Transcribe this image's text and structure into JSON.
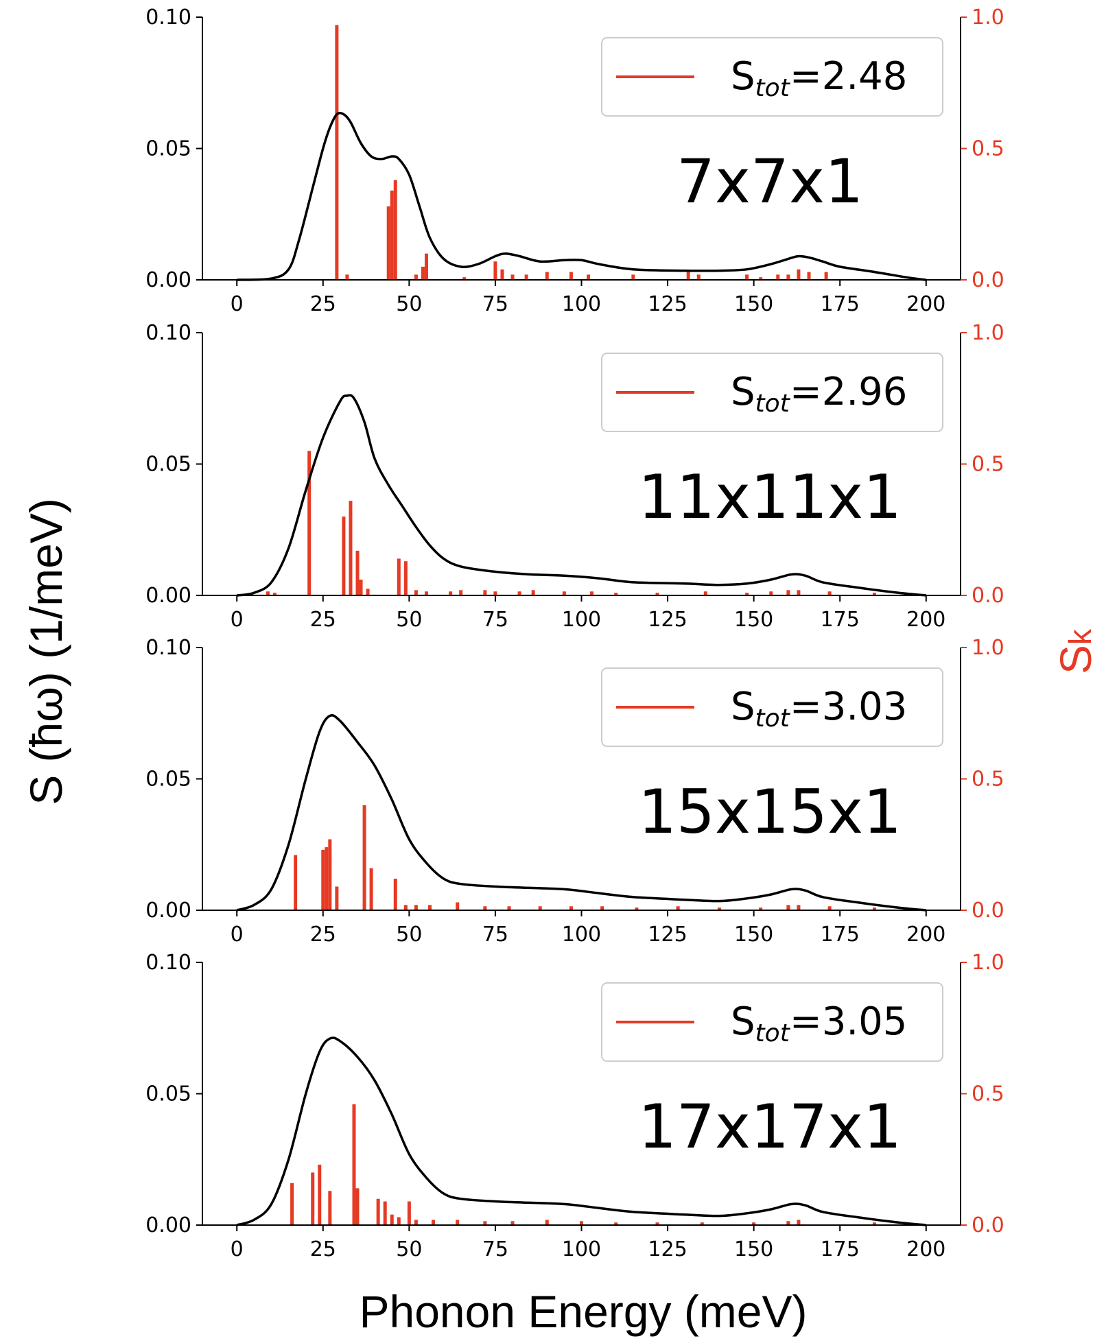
{
  "colors": {
    "curve": "#000000",
    "sticks": "#e53a24",
    "right_axis": "#e53a24",
    "left_axis": "#000000",
    "legend_border": "#cccccc"
  },
  "chart_data": {
    "type": "line",
    "shared_xlabel": "Phonon Energy (meV)",
    "shared_ylabel_left": "S (ħω)  (1/meV)",
    "shared_ylabel_right": "S",
    "shared_ylabel_right_sub": "k",
    "x_range": [
      0,
      200
    ],
    "x_ticks": [
      0,
      25,
      50,
      75,
      100,
      125,
      150,
      175,
      200
    ],
    "y_left_range": [
      0,
      0.1
    ],
    "y_left_ticks": [
      "0.00",
      "0.05",
      "0.10"
    ],
    "y_right_range": [
      0,
      1.0
    ],
    "y_right_ticks": [
      "0.0",
      "0.5",
      "1.0"
    ],
    "panels": [
      {
        "label": "7x7x1",
        "legend": {
          "prefix": "S",
          "sub": "tot",
          "value": "=2.48"
        },
        "curve": [
          [
            0,
            0
          ],
          [
            10,
            0.0005
          ],
          [
            15,
            0.004
          ],
          [
            18,
            0.015
          ],
          [
            22,
            0.035
          ],
          [
            25,
            0.05
          ],
          [
            27,
            0.058
          ],
          [
            29,
            0.063
          ],
          [
            31,
            0.063
          ],
          [
            33,
            0.06
          ],
          [
            36,
            0.052
          ],
          [
            39,
            0.047
          ],
          [
            42,
            0.046
          ],
          [
            45,
            0.047
          ],
          [
            47,
            0.046
          ],
          [
            50,
            0.04
          ],
          [
            53,
            0.028
          ],
          [
            56,
            0.016
          ],
          [
            60,
            0.008
          ],
          [
            65,
            0.005
          ],
          [
            70,
            0.006
          ],
          [
            75,
            0.009
          ],
          [
            78,
            0.01
          ],
          [
            82,
            0.009
          ],
          [
            88,
            0.007
          ],
          [
            95,
            0.0075
          ],
          [
            100,
            0.0075
          ],
          [
            105,
            0.006
          ],
          [
            115,
            0.004
          ],
          [
            130,
            0.0035
          ],
          [
            140,
            0.0035
          ],
          [
            148,
            0.004
          ],
          [
            155,
            0.006
          ],
          [
            160,
            0.008
          ],
          [
            163,
            0.009
          ],
          [
            166,
            0.0085
          ],
          [
            170,
            0.007
          ],
          [
            175,
            0.005
          ],
          [
            185,
            0.003
          ],
          [
            195,
            0.0008
          ],
          [
            200,
            0
          ]
        ],
        "sticks": [
          [
            29,
            0.97
          ],
          [
            32,
            0.02
          ],
          [
            44,
            0.28
          ],
          [
            45,
            0.34
          ],
          [
            46,
            0.38
          ],
          [
            52,
            0.02
          ],
          [
            54,
            0.05
          ],
          [
            55,
            0.1
          ],
          [
            66,
            0.01
          ],
          [
            75,
            0.07
          ],
          [
            77,
            0.04
          ],
          [
            80,
            0.02
          ],
          [
            84,
            0.02
          ],
          [
            90,
            0.03
          ],
          [
            97,
            0.03
          ],
          [
            102,
            0.02
          ],
          [
            115,
            0.02
          ],
          [
            131,
            0.03
          ],
          [
            134,
            0.02
          ],
          [
            148,
            0.02
          ],
          [
            152,
            0.01
          ],
          [
            157,
            0.02
          ],
          [
            160,
            0.02
          ],
          [
            163,
            0.04
          ],
          [
            166,
            0.03
          ],
          [
            171,
            0.03
          ]
        ]
      },
      {
        "label": "11x11x1",
        "legend": {
          "prefix": "S",
          "sub": "tot",
          "value": "=2.96"
        },
        "curve": [
          [
            0,
            0
          ],
          [
            5,
            0.001
          ],
          [
            10,
            0.005
          ],
          [
            15,
            0.018
          ],
          [
            20,
            0.04
          ],
          [
            25,
            0.06
          ],
          [
            30,
            0.074
          ],
          [
            32,
            0.076
          ],
          [
            34,
            0.075
          ],
          [
            37,
            0.066
          ],
          [
            40,
            0.052
          ],
          [
            44,
            0.042
          ],
          [
            48,
            0.034
          ],
          [
            52,
            0.026
          ],
          [
            56,
            0.019
          ],
          [
            60,
            0.014
          ],
          [
            65,
            0.011
          ],
          [
            75,
            0.009
          ],
          [
            85,
            0.008
          ],
          [
            95,
            0.0075
          ],
          [
            105,
            0.0065
          ],
          [
            115,
            0.005
          ],
          [
            130,
            0.0045
          ],
          [
            140,
            0.004
          ],
          [
            148,
            0.0045
          ],
          [
            155,
            0.006
          ],
          [
            161,
            0.008
          ],
          [
            165,
            0.0075
          ],
          [
            170,
            0.005
          ],
          [
            180,
            0.003
          ],
          [
            192,
            0.001
          ],
          [
            200,
            0
          ]
        ],
        "sticks": [
          [
            9,
            0.015
          ],
          [
            11,
            0.01
          ],
          [
            21,
            0.55
          ],
          [
            31,
            0.3
          ],
          [
            33,
            0.36
          ],
          [
            35,
            0.17
          ],
          [
            36,
            0.06
          ],
          [
            38,
            0.025
          ],
          [
            47,
            0.14
          ],
          [
            49,
            0.13
          ],
          [
            52,
            0.02
          ],
          [
            55,
            0.015
          ],
          [
            62,
            0.015
          ],
          [
            65,
            0.02
          ],
          [
            72,
            0.02
          ],
          [
            75,
            0.015
          ],
          [
            82,
            0.015
          ],
          [
            86,
            0.02
          ],
          [
            95,
            0.015
          ],
          [
            103,
            0.015
          ],
          [
            110,
            0.01
          ],
          [
            122,
            0.01
          ],
          [
            136,
            0.015
          ],
          [
            148,
            0.01
          ],
          [
            155,
            0.015
          ],
          [
            160,
            0.02
          ],
          [
            163,
            0.02
          ],
          [
            172,
            0.015
          ],
          [
            185,
            0.01
          ]
        ]
      },
      {
        "label": "15x15x1",
        "legend": {
          "prefix": "S",
          "sub": "tot",
          "value": "=3.03"
        },
        "curve": [
          [
            0,
            0
          ],
          [
            5,
            0.002
          ],
          [
            10,
            0.008
          ],
          [
            15,
            0.025
          ],
          [
            20,
            0.05
          ],
          [
            24,
            0.068
          ],
          [
            27,
            0.074
          ],
          [
            30,
            0.072
          ],
          [
            35,
            0.064
          ],
          [
            40,
            0.055
          ],
          [
            45,
            0.042
          ],
          [
            50,
            0.027
          ],
          [
            55,
            0.018
          ],
          [
            60,
            0.012
          ],
          [
            65,
            0.01
          ],
          [
            75,
            0.009
          ],
          [
            85,
            0.0085
          ],
          [
            95,
            0.008
          ],
          [
            105,
            0.0065
          ],
          [
            115,
            0.005
          ],
          [
            130,
            0.004
          ],
          [
            140,
            0.0035
          ],
          [
            148,
            0.0045
          ],
          [
            155,
            0.006
          ],
          [
            161,
            0.008
          ],
          [
            165,
            0.0075
          ],
          [
            170,
            0.005
          ],
          [
            180,
            0.003
          ],
          [
            192,
            0.001
          ],
          [
            200,
            0
          ]
        ],
        "sticks": [
          [
            17,
            0.21
          ],
          [
            25,
            0.23
          ],
          [
            26,
            0.24
          ],
          [
            27,
            0.27
          ],
          [
            29,
            0.09
          ],
          [
            37,
            0.4
          ],
          [
            39,
            0.16
          ],
          [
            46,
            0.12
          ],
          [
            49,
            0.02
          ],
          [
            52,
            0.02
          ],
          [
            56,
            0.02
          ],
          [
            64,
            0.03
          ],
          [
            72,
            0.015
          ],
          [
            79,
            0.015
          ],
          [
            88,
            0.015
          ],
          [
            97,
            0.015
          ],
          [
            106,
            0.015
          ],
          [
            116,
            0.01
          ],
          [
            128,
            0.015
          ],
          [
            140,
            0.01
          ],
          [
            152,
            0.01
          ],
          [
            160,
            0.02
          ],
          [
            163,
            0.02
          ],
          [
            172,
            0.015
          ],
          [
            185,
            0.01
          ]
        ]
      },
      {
        "label": "17x17x1",
        "legend": {
          "prefix": "S",
          "sub": "tot",
          "value": "=3.05"
        },
        "curve": [
          [
            0,
            0
          ],
          [
            5,
            0.002
          ],
          [
            10,
            0.008
          ],
          [
            15,
            0.025
          ],
          [
            20,
            0.05
          ],
          [
            24,
            0.066
          ],
          [
            27,
            0.071
          ],
          [
            30,
            0.07
          ],
          [
            35,
            0.064
          ],
          [
            40,
            0.055
          ],
          [
            45,
            0.042
          ],
          [
            50,
            0.027
          ],
          [
            55,
            0.018
          ],
          [
            60,
            0.012
          ],
          [
            65,
            0.01
          ],
          [
            75,
            0.009
          ],
          [
            85,
            0.0085
          ],
          [
            95,
            0.008
          ],
          [
            105,
            0.0065
          ],
          [
            115,
            0.005
          ],
          [
            130,
            0.004
          ],
          [
            140,
            0.0035
          ],
          [
            148,
            0.0045
          ],
          [
            155,
            0.006
          ],
          [
            161,
            0.008
          ],
          [
            165,
            0.0075
          ],
          [
            170,
            0.005
          ],
          [
            180,
            0.003
          ],
          [
            192,
            0.001
          ],
          [
            200,
            0
          ]
        ],
        "sticks": [
          [
            16,
            0.16
          ],
          [
            22,
            0.2
          ],
          [
            24,
            0.23
          ],
          [
            27,
            0.13
          ],
          [
            34,
            0.46
          ],
          [
            35,
            0.14
          ],
          [
            41,
            0.1
          ],
          [
            43,
            0.09
          ],
          [
            45,
            0.04
          ],
          [
            47,
            0.03
          ],
          [
            50,
            0.09
          ],
          [
            52,
            0.02
          ],
          [
            57,
            0.02
          ],
          [
            64,
            0.02
          ],
          [
            72,
            0.015
          ],
          [
            80,
            0.015
          ],
          [
            90,
            0.02
          ],
          [
            100,
            0.015
          ],
          [
            110,
            0.01
          ],
          [
            122,
            0.01
          ],
          [
            135,
            0.01
          ],
          [
            150,
            0.01
          ],
          [
            160,
            0.015
          ],
          [
            163,
            0.02
          ],
          [
            185,
            0.01
          ]
        ]
      }
    ]
  }
}
